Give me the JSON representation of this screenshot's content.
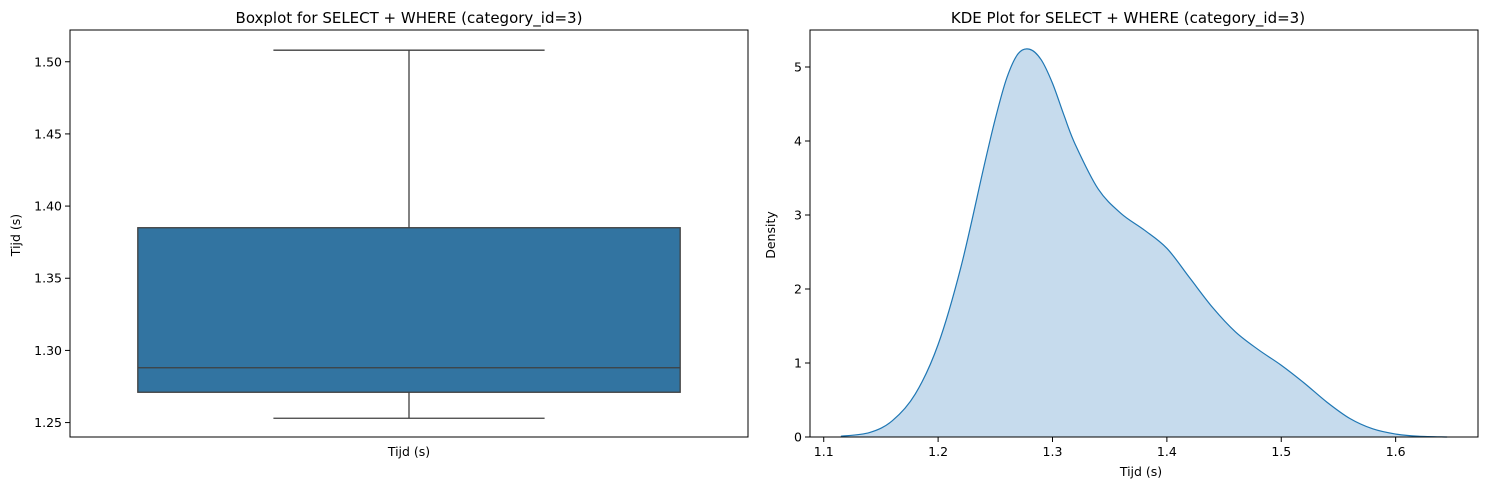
{
  "chart_data": [
    {
      "type": "box",
      "title": "Boxplot for SELECT + WHERE (category_id=3)",
      "xlabel": "Tijd (s)",
      "ylabel": "Tijd (s)",
      "ylim": [
        1.24,
        1.522
      ],
      "yticks": [
        1.25,
        1.3,
        1.35,
        1.4,
        1.45,
        1.5
      ],
      "ytick_labels": [
        "1.25",
        "1.30",
        "1.35",
        "1.40",
        "1.45",
        "1.50"
      ],
      "box": {
        "whisker_low": 1.253,
        "q1": 1.271,
        "median": 1.288,
        "q3": 1.385,
        "whisker_high": 1.508
      },
      "colors": {
        "box_fill": "#3274a1",
        "box_edge": "#3f3f3f"
      }
    },
    {
      "type": "area",
      "title": "KDE Plot for SELECT + WHERE (category_id=3)",
      "xlabel": "Tijd (s)",
      "ylabel": "Density",
      "xlim": [
        1.088,
        1.672
      ],
      "ylim": [
        0,
        5.5
      ],
      "xticks": [
        1.1,
        1.2,
        1.3,
        1.4,
        1.5,
        1.6
      ],
      "xtick_labels": [
        "1.1",
        "1.2",
        "1.3",
        "1.4",
        "1.5",
        "1.6"
      ],
      "yticks": [
        0,
        1,
        2,
        3,
        4,
        5
      ],
      "ytick_labels": [
        "0",
        "1",
        "2",
        "3",
        "4",
        "5"
      ],
      "x": [
        1.115,
        1.14,
        1.16,
        1.18,
        1.2,
        1.22,
        1.24,
        1.25,
        1.26,
        1.27,
        1.28,
        1.29,
        1.3,
        1.31,
        1.32,
        1.34,
        1.36,
        1.38,
        1.4,
        1.42,
        1.44,
        1.46,
        1.48,
        1.5,
        1.52,
        1.54,
        1.56,
        1.58,
        1.6,
        1.62,
        1.645
      ],
      "y": [
        0.01,
        0.06,
        0.22,
        0.58,
        1.25,
        2.3,
        3.65,
        4.3,
        4.85,
        5.18,
        5.24,
        5.1,
        4.78,
        4.35,
        3.95,
        3.35,
        3.02,
        2.8,
        2.55,
        2.15,
        1.75,
        1.42,
        1.18,
        0.97,
        0.73,
        0.47,
        0.25,
        0.11,
        0.04,
        0.01,
        0.0
      ],
      "colors": {
        "line": "#1f77b4",
        "fill": "#c6dbed"
      }
    }
  ]
}
